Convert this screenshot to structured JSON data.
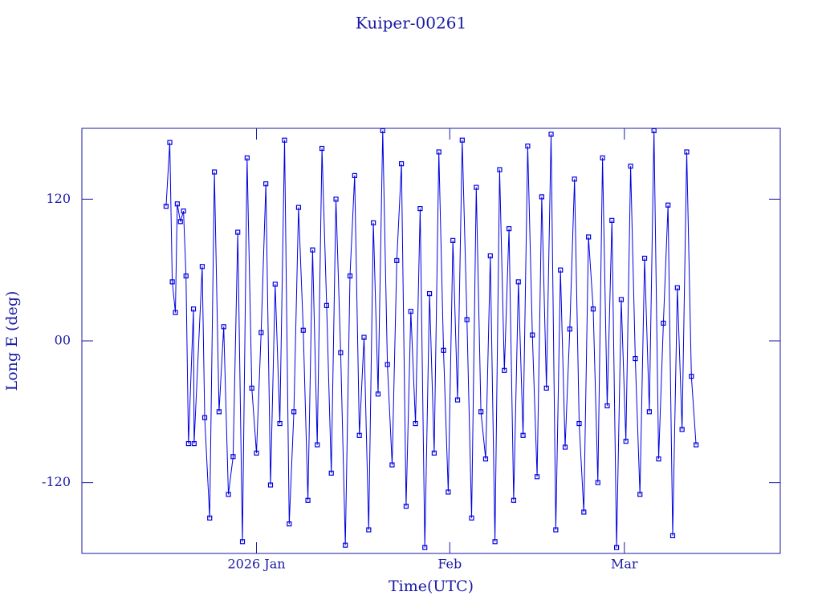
{
  "chart_data": {
    "type": "line",
    "title": "Kuiper-00261",
    "xlabel": "Time(UTC)",
    "ylabel": "Long E (deg)",
    "xlim": [
      -28,
      84
    ],
    "ylim": [
      -180,
      180
    ],
    "xticks": [
      {
        "value": 0,
        "label": "2026 Jan"
      },
      {
        "value": 31,
        "label": "Feb"
      },
      {
        "value": 59,
        "label": "Mar"
      }
    ],
    "yticks": [
      {
        "value": -120,
        "label": "-120"
      },
      {
        "value": 0,
        "label": "00"
      },
      120
    ],
    "series": [
      {
        "color": "#0000e0",
        "x": [
          -14.5,
          -13.9,
          -13.5,
          -13,
          -12.7,
          -12.2,
          -11.7,
          -11.3,
          -10.9,
          -10.1,
          -10,
          -8.7,
          -8.3,
          -7.5,
          -6.75,
          -6,
          -5.25,
          -4.5,
          -3.75,
          -3,
          -2.25,
          -1.5,
          -0.75,
          0,
          0.75,
          1.5,
          2.25,
          3,
          3.75,
          4.5,
          5.25,
          6,
          6.75,
          7.5,
          8.25,
          9,
          9.75,
          10.5,
          11.25,
          12,
          12.75,
          13.5,
          14.25,
          15,
          15.75,
          16.5,
          17.25,
          18,
          18.75,
          19.5,
          20.25,
          21,
          21.75,
          22.5,
          23.25,
          24,
          24.75,
          25.5,
          26.25,
          27,
          27.75,
          28.5,
          29.25,
          30,
          30.75,
          31.5,
          32.25,
          33,
          33.75,
          34.5,
          35.25,
          36,
          36.75,
          37.5,
          38.25,
          39,
          39.75,
          40.5,
          41.25,
          42,
          42.75,
          43.5,
          44.25,
          45,
          45.75,
          46.5,
          47.25,
          48,
          48.75,
          49.5,
          50.25,
          51,
          51.75,
          52.5,
          53.25,
          54,
          54.75,
          55.5,
          56.25,
          57,
          57.75,
          58.5,
          59.25,
          60,
          60.75,
          61.5,
          62.25,
          63,
          63.75,
          64.5,
          65.25,
          66,
          66.75,
          67.5,
          68.25,
          69,
          69.75,
          70.5
        ],
        "values": [
          114,
          168,
          50,
          24,
          116,
          101,
          110,
          55,
          -87,
          27,
          -87,
          63,
          -65,
          -150,
          143,
          -60,
          12,
          -130,
          -98,
          92,
          -170,
          155,
          -40,
          -95,
          7,
          133,
          -122,
          48,
          -70,
          170,
          -155,
          -60,
          113,
          9,
          -135,
          77,
          -88,
          163,
          30,
          -112,
          120,
          -10,
          -173,
          55,
          140,
          -80,
          3,
          -160,
          100,
          -45,
          178,
          -20,
          -105,
          68,
          150,
          -140,
          25,
          -70,
          112,
          -175,
          40,
          -95,
          160,
          -8,
          -128,
          85,
          -50,
          170,
          18,
          -150,
          130,
          -60,
          -100,
          72,
          -170,
          145,
          -25,
          95,
          -135,
          50,
          -80,
          165,
          5,
          -115,
          122,
          -40,
          175,
          -160,
          60,
          -90,
          10,
          137,
          -70,
          -145,
          88,
          27,
          -120,
          155,
          -55,
          102,
          -175,
          35,
          -85,
          148,
          -15,
          -130,
          70,
          -60,
          178,
          -100,
          15,
          115,
          -165,
          45,
          -75,
          160,
          -30,
          -88
        ]
      }
    ]
  }
}
